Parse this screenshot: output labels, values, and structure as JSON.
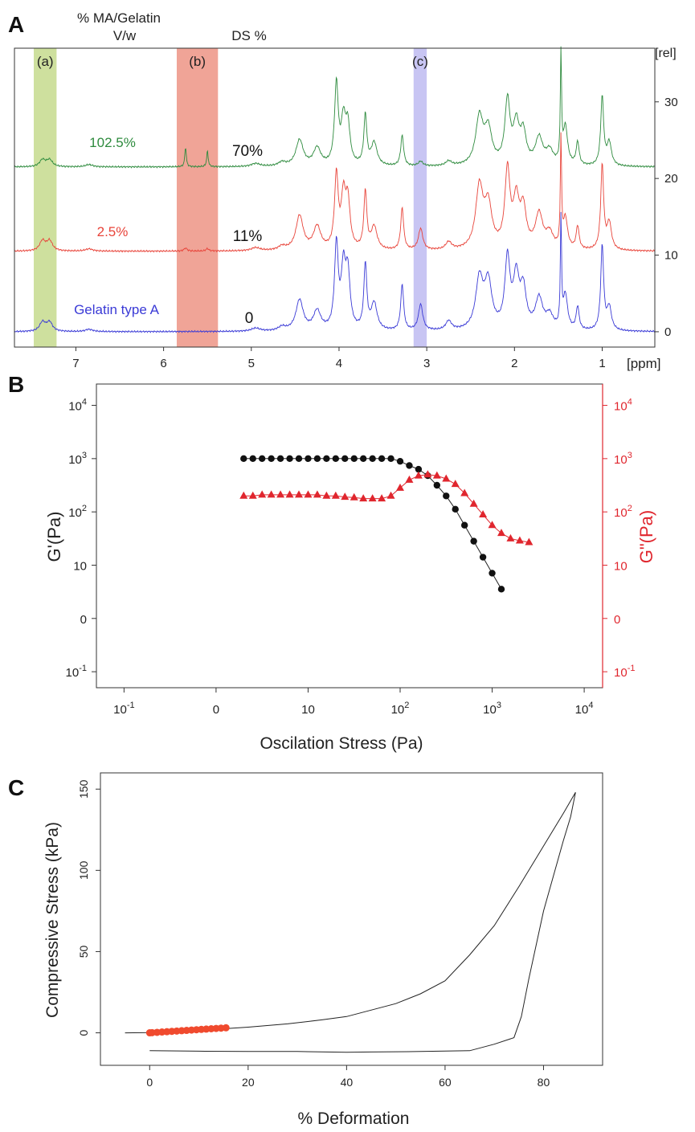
{
  "panels": {
    "a": "A",
    "b": "B",
    "c": "C"
  },
  "colors": {
    "green": "#2e8b3e",
    "red": "#e8443a",
    "blue": "#3a3ad6",
    "band_a": "#c9dd93",
    "band_b": "#ee9a8c",
    "band_c": "#c2bff2",
    "black": "#111111",
    "axis_b_right": "#e0262e",
    "points_c": "#f04a2e"
  },
  "chart_data": [
    {
      "type": "line",
      "panel": "A",
      "header": {
        "col1_line1": "% MA/Gelatin",
        "col1_line2": "V/w",
        "col2": "DS %"
      },
      "xlabel": "[ppm]",
      "ylabel": "[rel]",
      "x_ticks": [
        "7",
        "6",
        "5",
        "4",
        "3",
        "2",
        "1"
      ],
      "y_ticks": [
        "0",
        "10",
        "20",
        "30"
      ],
      "xlim": [
        7.7,
        0.4
      ],
      "ylim": [
        -2,
        37
      ],
      "x_reversed": true,
      "bands": [
        {
          "label": "(a)",
          "from": 7.48,
          "to": 7.22
        },
        {
          "label": "(b)",
          "from": 5.85,
          "to": 5.38
        },
        {
          "label": "(c)",
          "from": 3.15,
          "to": 3.0
        }
      ],
      "series": [
        {
          "name": "102.5%",
          "ds": "70%",
          "offset": 21.5,
          "color": "green",
          "peaks": [
            [
              7.38,
              0.9,
              0.04
            ],
            [
              7.3,
              0.9,
              0.04
            ],
            [
              6.85,
              0.3,
              0.05
            ],
            [
              5.75,
              2.6,
              0.01
            ],
            [
              5.5,
              2.1,
              0.01
            ],
            [
              4.95,
              0.4,
              0.06
            ],
            [
              4.65,
              0.5,
              0.05
            ],
            [
              4.45,
              3.4,
              0.05
            ],
            [
              4.25,
              2.3,
              0.05
            ],
            [
              4.03,
              10.5,
              0.025
            ],
            [
              3.95,
              5.5,
              0.03
            ],
            [
              3.9,
              5.0,
              0.03
            ],
            [
              3.7,
              6.5,
              0.02
            ],
            [
              3.6,
              3.0,
              0.04
            ],
            [
              3.28,
              4.0,
              0.02
            ],
            [
              3.07,
              0.6,
              0.03
            ],
            [
              2.75,
              0.6,
              0.04
            ],
            [
              2.4,
              6.2,
              0.05
            ],
            [
              2.3,
              4.5,
              0.05
            ],
            [
              2.08,
              8.2,
              0.035
            ],
            [
              1.98,
              5.0,
              0.04
            ],
            [
              1.9,
              4.0,
              0.04
            ],
            [
              1.72,
              3.5,
              0.05
            ],
            [
              1.6,
              1.8,
              0.05
            ],
            [
              1.47,
              14.0,
              0.008
            ],
            [
              1.42,
              5.0,
              0.03
            ],
            [
              1.28,
              3.0,
              0.02
            ],
            [
              1.0,
              9.0,
              0.02
            ],
            [
              0.92,
              3.0,
              0.03
            ]
          ]
        },
        {
          "name": "2.5%",
          "ds": "11%",
          "offset": 10.5,
          "color": "red",
          "peaks": [
            [
              7.38,
              1.3,
              0.04
            ],
            [
              7.3,
              1.3,
              0.04
            ],
            [
              6.85,
              0.3,
              0.05
            ],
            [
              5.75,
              0.4,
              0.02
            ],
            [
              5.5,
              0.3,
              0.02
            ],
            [
              4.95,
              0.4,
              0.06
            ],
            [
              4.65,
              0.5,
              0.05
            ],
            [
              4.45,
              4.5,
              0.05
            ],
            [
              4.25,
              3.0,
              0.05
            ],
            [
              4.03,
              9.5,
              0.025
            ],
            [
              3.95,
              6.5,
              0.03
            ],
            [
              3.9,
              6.0,
              0.03
            ],
            [
              3.7,
              7.5,
              0.02
            ],
            [
              3.6,
              3.0,
              0.04
            ],
            [
              3.28,
              5.5,
              0.02
            ],
            [
              3.07,
              2.8,
              0.03
            ],
            [
              2.75,
              1.0,
              0.04
            ],
            [
              2.4,
              8.0,
              0.05
            ],
            [
              2.3,
              5.5,
              0.05
            ],
            [
              2.08,
              10.0,
              0.035
            ],
            [
              1.98,
              6.0,
              0.04
            ],
            [
              1.9,
              5.0,
              0.04
            ],
            [
              1.72,
              4.5,
              0.05
            ],
            [
              1.6,
              2.0,
              0.05
            ],
            [
              1.47,
              14.0,
              0.008
            ],
            [
              1.42,
              4.0,
              0.03
            ],
            [
              1.28,
              3.0,
              0.02
            ],
            [
              1.0,
              11.0,
              0.02
            ],
            [
              0.92,
              3.5,
              0.03
            ]
          ]
        },
        {
          "name": "Gelatin type A",
          "ds": "0",
          "offset": 0,
          "color": "blue",
          "peaks": [
            [
              7.38,
              1.2,
              0.04
            ],
            [
              7.3,
              1.2,
              0.04
            ],
            [
              6.85,
              0.3,
              0.05
            ],
            [
              4.95,
              0.4,
              0.06
            ],
            [
              4.65,
              0.5,
              0.05
            ],
            [
              4.45,
              4.0,
              0.05
            ],
            [
              4.25,
              2.5,
              0.05
            ],
            [
              4.03,
              11.0,
              0.025
            ],
            [
              3.95,
              7.5,
              0.03
            ],
            [
              3.9,
              7.0,
              0.03
            ],
            [
              3.7,
              8.5,
              0.02
            ],
            [
              3.6,
              3.5,
              0.04
            ],
            [
              3.28,
              6.0,
              0.02
            ],
            [
              3.07,
              3.4,
              0.03
            ],
            [
              2.75,
              1.2,
              0.04
            ],
            [
              2.4,
              6.5,
              0.05
            ],
            [
              2.3,
              6.0,
              0.05
            ],
            [
              2.08,
              9.0,
              0.035
            ],
            [
              1.98,
              6.5,
              0.04
            ],
            [
              1.9,
              5.0,
              0.04
            ],
            [
              1.72,
              4.0,
              0.05
            ],
            [
              1.6,
              1.8,
              0.05
            ],
            [
              1.47,
              14.0,
              0.008
            ],
            [
              1.42,
              4.5,
              0.03
            ],
            [
              1.28,
              3.0,
              0.02
            ],
            [
              1.0,
              11.0,
              0.02
            ],
            [
              0.92,
              3.0,
              0.03
            ]
          ]
        }
      ]
    },
    {
      "type": "scatter",
      "panel": "B",
      "xlabel": "Oscilation Stress (Pa)",
      "ylabel_left": "G'(Pa)",
      "ylabel_right": "G\"(Pa)",
      "scale": "log",
      "xlim": [
        -1.3,
        4.2
      ],
      "ylim": [
        -1.3,
        4.4
      ],
      "x_tick_labels": [
        {
          "v": -1,
          "base": "10",
          "exp": "-1"
        },
        {
          "v": 0,
          "base": "0",
          "exp": ""
        },
        {
          "v": 1,
          "base": "10",
          "exp": ""
        },
        {
          "v": 2,
          "base": "10",
          "exp": "2"
        },
        {
          "v": 3,
          "base": "10",
          "exp": "3"
        },
        {
          "v": 4,
          "base": "10",
          "exp": "4"
        }
      ],
      "y_tick_labels": [
        {
          "v": -1,
          "base": "10",
          "exp": "-1"
        },
        {
          "v": 0,
          "base": "0",
          "exp": ""
        },
        {
          "v": 1,
          "base": "10",
          "exp": ""
        },
        {
          "v": 2,
          "base": "10",
          "exp": "2"
        },
        {
          "v": 3,
          "base": "10",
          "exp": "3"
        },
        {
          "v": 4,
          "base": "10",
          "exp": "4"
        }
      ],
      "series": [
        {
          "marker": "circle",
          "color": "black",
          "axis": "left",
          "x": [
            0.3,
            0.4,
            0.5,
            0.6,
            0.7,
            0.8,
            0.9,
            1.0,
            1.1,
            1.2,
            1.3,
            1.4,
            1.5,
            1.6,
            1.7,
            1.8,
            1.9,
            2.0,
            2.1,
            2.2,
            2.3,
            2.4,
            2.5,
            2.6,
            2.7,
            2.8,
            2.9,
            3.0,
            3.1
          ],
          "y": [
            3.0,
            3.0,
            3.0,
            3.0,
            3.0,
            3.0,
            3.0,
            3.0,
            3.0,
            3.0,
            3.0,
            3.0,
            3.0,
            3.0,
            3.0,
            3.0,
            3.0,
            2.95,
            2.87,
            2.8,
            2.68,
            2.5,
            2.3,
            2.05,
            1.75,
            1.45,
            1.15,
            0.85,
            0.55
          ]
        },
        {
          "marker": "triangle",
          "color": "axis_b_right",
          "axis": "right",
          "x": [
            0.3,
            0.4,
            0.5,
            0.6,
            0.7,
            0.8,
            0.9,
            1.0,
            1.1,
            1.2,
            1.3,
            1.4,
            1.5,
            1.6,
            1.7,
            1.8,
            1.9,
            2.0,
            2.1,
            2.2,
            2.3,
            2.4,
            2.5,
            2.6,
            2.7,
            2.8,
            2.9,
            3.0,
            3.1,
            3.2,
            3.3,
            3.4
          ],
          "y": [
            2.3,
            2.3,
            2.32,
            2.32,
            2.32,
            2.32,
            2.32,
            2.32,
            2.32,
            2.3,
            2.3,
            2.28,
            2.27,
            2.25,
            2.25,
            2.25,
            2.3,
            2.45,
            2.6,
            2.68,
            2.7,
            2.68,
            2.62,
            2.52,
            2.35,
            2.15,
            1.95,
            1.75,
            1.6,
            1.5,
            1.46,
            1.43
          ]
        }
      ]
    },
    {
      "type": "line",
      "panel": "C",
      "xlabel": "% Deformation",
      "ylabel": "Compressive Stress (kPa)",
      "xlim": [
        -10,
        92
      ],
      "ylim": [
        -20,
        160
      ],
      "x_ticks": [
        0,
        20,
        40,
        60,
        80
      ],
      "y_ticks": [
        0,
        50,
        100,
        150
      ],
      "loading": {
        "x": [
          -5,
          0,
          5,
          10,
          15,
          20,
          28,
          35,
          40,
          50,
          55,
          60,
          65,
          70,
          75,
          80,
          84,
          86.5
        ],
        "y": [
          0,
          0.2,
          1,
          1.8,
          2.5,
          3.5,
          5.5,
          8,
          10,
          18,
          24,
          32,
          48,
          66,
          90,
          115,
          135,
          148
        ]
      },
      "unloading": {
        "x": [
          86.5,
          85.5,
          84,
          80,
          77,
          75.5,
          74,
          70,
          65,
          55,
          45,
          40,
          30,
          20,
          10,
          0
        ],
        "y": [
          148,
          133,
          118,
          75,
          33,
          10,
          -3,
          -7,
          -11,
          -11.5,
          -11.8,
          -12,
          -11.5,
          -11.5,
          -11.3,
          -11
        ]
      },
      "points": {
        "x": [
          0,
          0.5,
          1.5,
          2.5,
          3.5,
          4.5,
          5.5,
          6.5,
          7.5,
          8.5,
          9.5,
          10.5,
          11.5,
          12.5,
          13.5,
          14.5,
          15.5
        ],
        "y": [
          0,
          0.1,
          0.3,
          0.5,
          0.7,
          0.9,
          1.1,
          1.3,
          1.5,
          1.7,
          1.9,
          2.1,
          2.3,
          2.5,
          2.7,
          2.9,
          3.1
        ]
      }
    }
  ]
}
